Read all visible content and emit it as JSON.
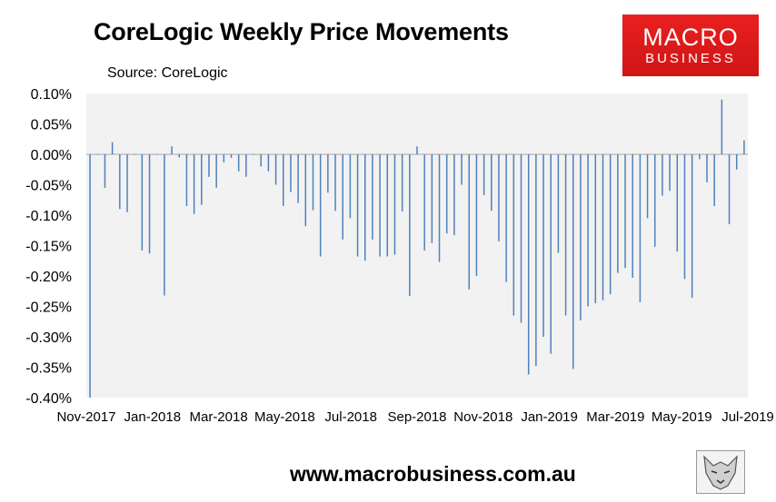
{
  "title": "CoreLogic Weekly Price Movements",
  "source": "Source: CoreLogic",
  "logo": {
    "line1": "MACRO",
    "line2": "BUSINESS",
    "color": "#e31b1b"
  },
  "url": "www.macrobusiness.com.au",
  "chart_data": {
    "type": "bar",
    "bar_color": "#4f81bd",
    "plot_background": "#f2f2f2",
    "ylim": [
      -0.4,
      0.1
    ],
    "y_ticks": [
      "0.10%",
      "0.05%",
      "0.00%",
      "-0.05%",
      "-0.10%",
      "-0.15%",
      "-0.20%",
      "-0.25%",
      "-0.30%",
      "-0.35%",
      "-0.40%"
    ],
    "x_ticks": [
      "Nov-2017",
      "Jan-2018",
      "Mar-2018",
      "May-2018",
      "Jul-2018",
      "Sep-2018",
      "Nov-2018",
      "Jan-2019",
      "Mar-2019",
      "May-2019",
      "Jul-2019"
    ],
    "grid": false,
    "series": [
      {
        "values": [
          -0.4,
          -0.001,
          -0.055,
          0.02,
          -0.09,
          -0.095,
          -0.001,
          -0.158,
          -0.163,
          -0.001,
          -0.232,
          0.013,
          -0.005,
          -0.085,
          -0.098,
          -0.083,
          -0.037,
          -0.055,
          -0.013,
          -0.006,
          -0.028,
          -0.037,
          -0.001,
          -0.02,
          -0.028,
          -0.05,
          -0.085,
          -0.062,
          -0.08,
          -0.118,
          -0.092,
          -0.168,
          -0.063,
          -0.093,
          -0.14,
          -0.105,
          -0.168,
          -0.175,
          -0.14,
          -0.168,
          -0.168,
          -0.165,
          -0.094,
          -0.233,
          0.013,
          -0.158,
          -0.146,
          -0.177,
          -0.13,
          -0.133,
          -0.05,
          -0.222,
          -0.2,
          -0.067,
          -0.093,
          -0.143,
          -0.21,
          -0.265,
          -0.277,
          -0.362,
          -0.348,
          -0.3,
          -0.328,
          -0.162,
          -0.265,
          -0.353,
          -0.273,
          -0.25,
          -0.245,
          -0.24,
          -0.23,
          -0.195,
          -0.187,
          -0.203,
          -0.243,
          -0.105,
          -0.152,
          -0.068,
          -0.06,
          -0.16,
          -0.205,
          -0.236,
          -0.008,
          -0.046,
          -0.085,
          0.09,
          -0.115,
          -0.025,
          0.023
        ]
      }
    ]
  }
}
